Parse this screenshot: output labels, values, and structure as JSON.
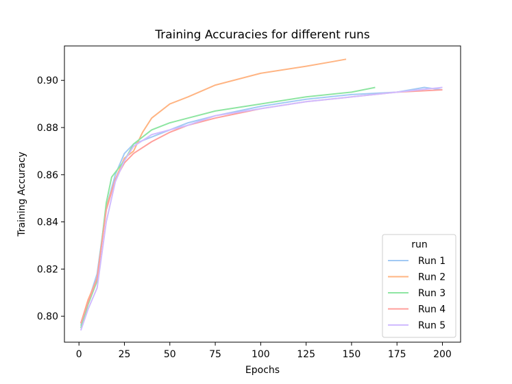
{
  "chart_data": {
    "type": "line",
    "title": "Training Accuracies for different runs",
    "xlabel": "Epochs",
    "ylabel": "Training Accuracy",
    "xlim": [
      -8,
      210
    ],
    "ylim": [
      0.789,
      0.9146
    ],
    "xticks": [
      "0",
      "25",
      "50",
      "75",
      "100",
      "125",
      "150",
      "175",
      "200"
    ],
    "xtick_values": [
      0,
      25,
      50,
      75,
      100,
      125,
      150,
      175,
      200
    ],
    "yticks": [
      "0.80",
      "0.82",
      "0.84",
      "0.86",
      "0.88",
      "0.90"
    ],
    "ytick_values": [
      0.8,
      0.82,
      0.84,
      0.86,
      0.88,
      0.9
    ],
    "grid": false,
    "legend": {
      "title": "run",
      "placement": "lower-right"
    },
    "series": [
      {
        "name": "Run 1",
        "color": "#a1c9f4",
        "points": [
          [
            1,
            0.796
          ],
          [
            5,
            0.806
          ],
          [
            10,
            0.818
          ],
          [
            15,
            0.846
          ],
          [
            20,
            0.86
          ],
          [
            25,
            0.869
          ],
          [
            30,
            0.873
          ],
          [
            40,
            0.876
          ],
          [
            50,
            0.879
          ],
          [
            60,
            0.882
          ],
          [
            75,
            0.885
          ],
          [
            100,
            0.889
          ],
          [
            125,
            0.892
          ],
          [
            150,
            0.894
          ],
          [
            175,
            0.895
          ],
          [
            190,
            0.897
          ],
          [
            200,
            0.896
          ]
        ]
      },
      {
        "name": "Run 2",
        "color": "#ffb482",
        "points": [
          [
            1,
            0.797
          ],
          [
            5,
            0.807
          ],
          [
            10,
            0.816
          ],
          [
            15,
            0.846
          ],
          [
            20,
            0.858
          ],
          [
            25,
            0.867
          ],
          [
            30,
            0.87
          ],
          [
            35,
            0.878
          ],
          [
            40,
            0.884
          ],
          [
            50,
            0.89
          ],
          [
            60,
            0.893
          ],
          [
            75,
            0.898
          ],
          [
            100,
            0.903
          ],
          [
            125,
            0.906
          ],
          [
            140,
            0.908
          ],
          [
            147,
            0.909
          ]
        ]
      },
      {
        "name": "Run 3",
        "color": "#8de5a1",
        "points": [
          [
            1,
            0.795
          ],
          [
            5,
            0.805
          ],
          [
            10,
            0.815
          ],
          [
            15,
            0.848
          ],
          [
            18,
            0.859
          ],
          [
            25,
            0.866
          ],
          [
            30,
            0.873
          ],
          [
            40,
            0.879
          ],
          [
            50,
            0.882
          ],
          [
            60,
            0.884
          ],
          [
            75,
            0.887
          ],
          [
            100,
            0.89
          ],
          [
            125,
            0.893
          ],
          [
            150,
            0.895
          ],
          [
            163,
            0.897
          ]
        ]
      },
      {
        "name": "Run 4",
        "color": "#ff9f9b",
        "points": [
          [
            1,
            0.797
          ],
          [
            5,
            0.806
          ],
          [
            10,
            0.816
          ],
          [
            15,
            0.845
          ],
          [
            20,
            0.858
          ],
          [
            25,
            0.865
          ],
          [
            30,
            0.869
          ],
          [
            40,
            0.874
          ],
          [
            50,
            0.878
          ],
          [
            60,
            0.881
          ],
          [
            75,
            0.884
          ],
          [
            100,
            0.888
          ],
          [
            125,
            0.891
          ],
          [
            150,
            0.893
          ],
          [
            175,
            0.895
          ],
          [
            200,
            0.896
          ]
        ]
      },
      {
        "name": "Run 5",
        "color": "#d0bbff",
        "points": [
          [
            1,
            0.794
          ],
          [
            5,
            0.803
          ],
          [
            10,
            0.812
          ],
          [
            15,
            0.84
          ],
          [
            20,
            0.857
          ],
          [
            25,
            0.866
          ],
          [
            30,
            0.872
          ],
          [
            40,
            0.877
          ],
          [
            50,
            0.879
          ],
          [
            60,
            0.881
          ],
          [
            75,
            0.885
          ],
          [
            100,
            0.888
          ],
          [
            125,
            0.891
          ],
          [
            150,
            0.893
          ],
          [
            175,
            0.895
          ],
          [
            200,
            0.897
          ]
        ]
      }
    ]
  }
}
